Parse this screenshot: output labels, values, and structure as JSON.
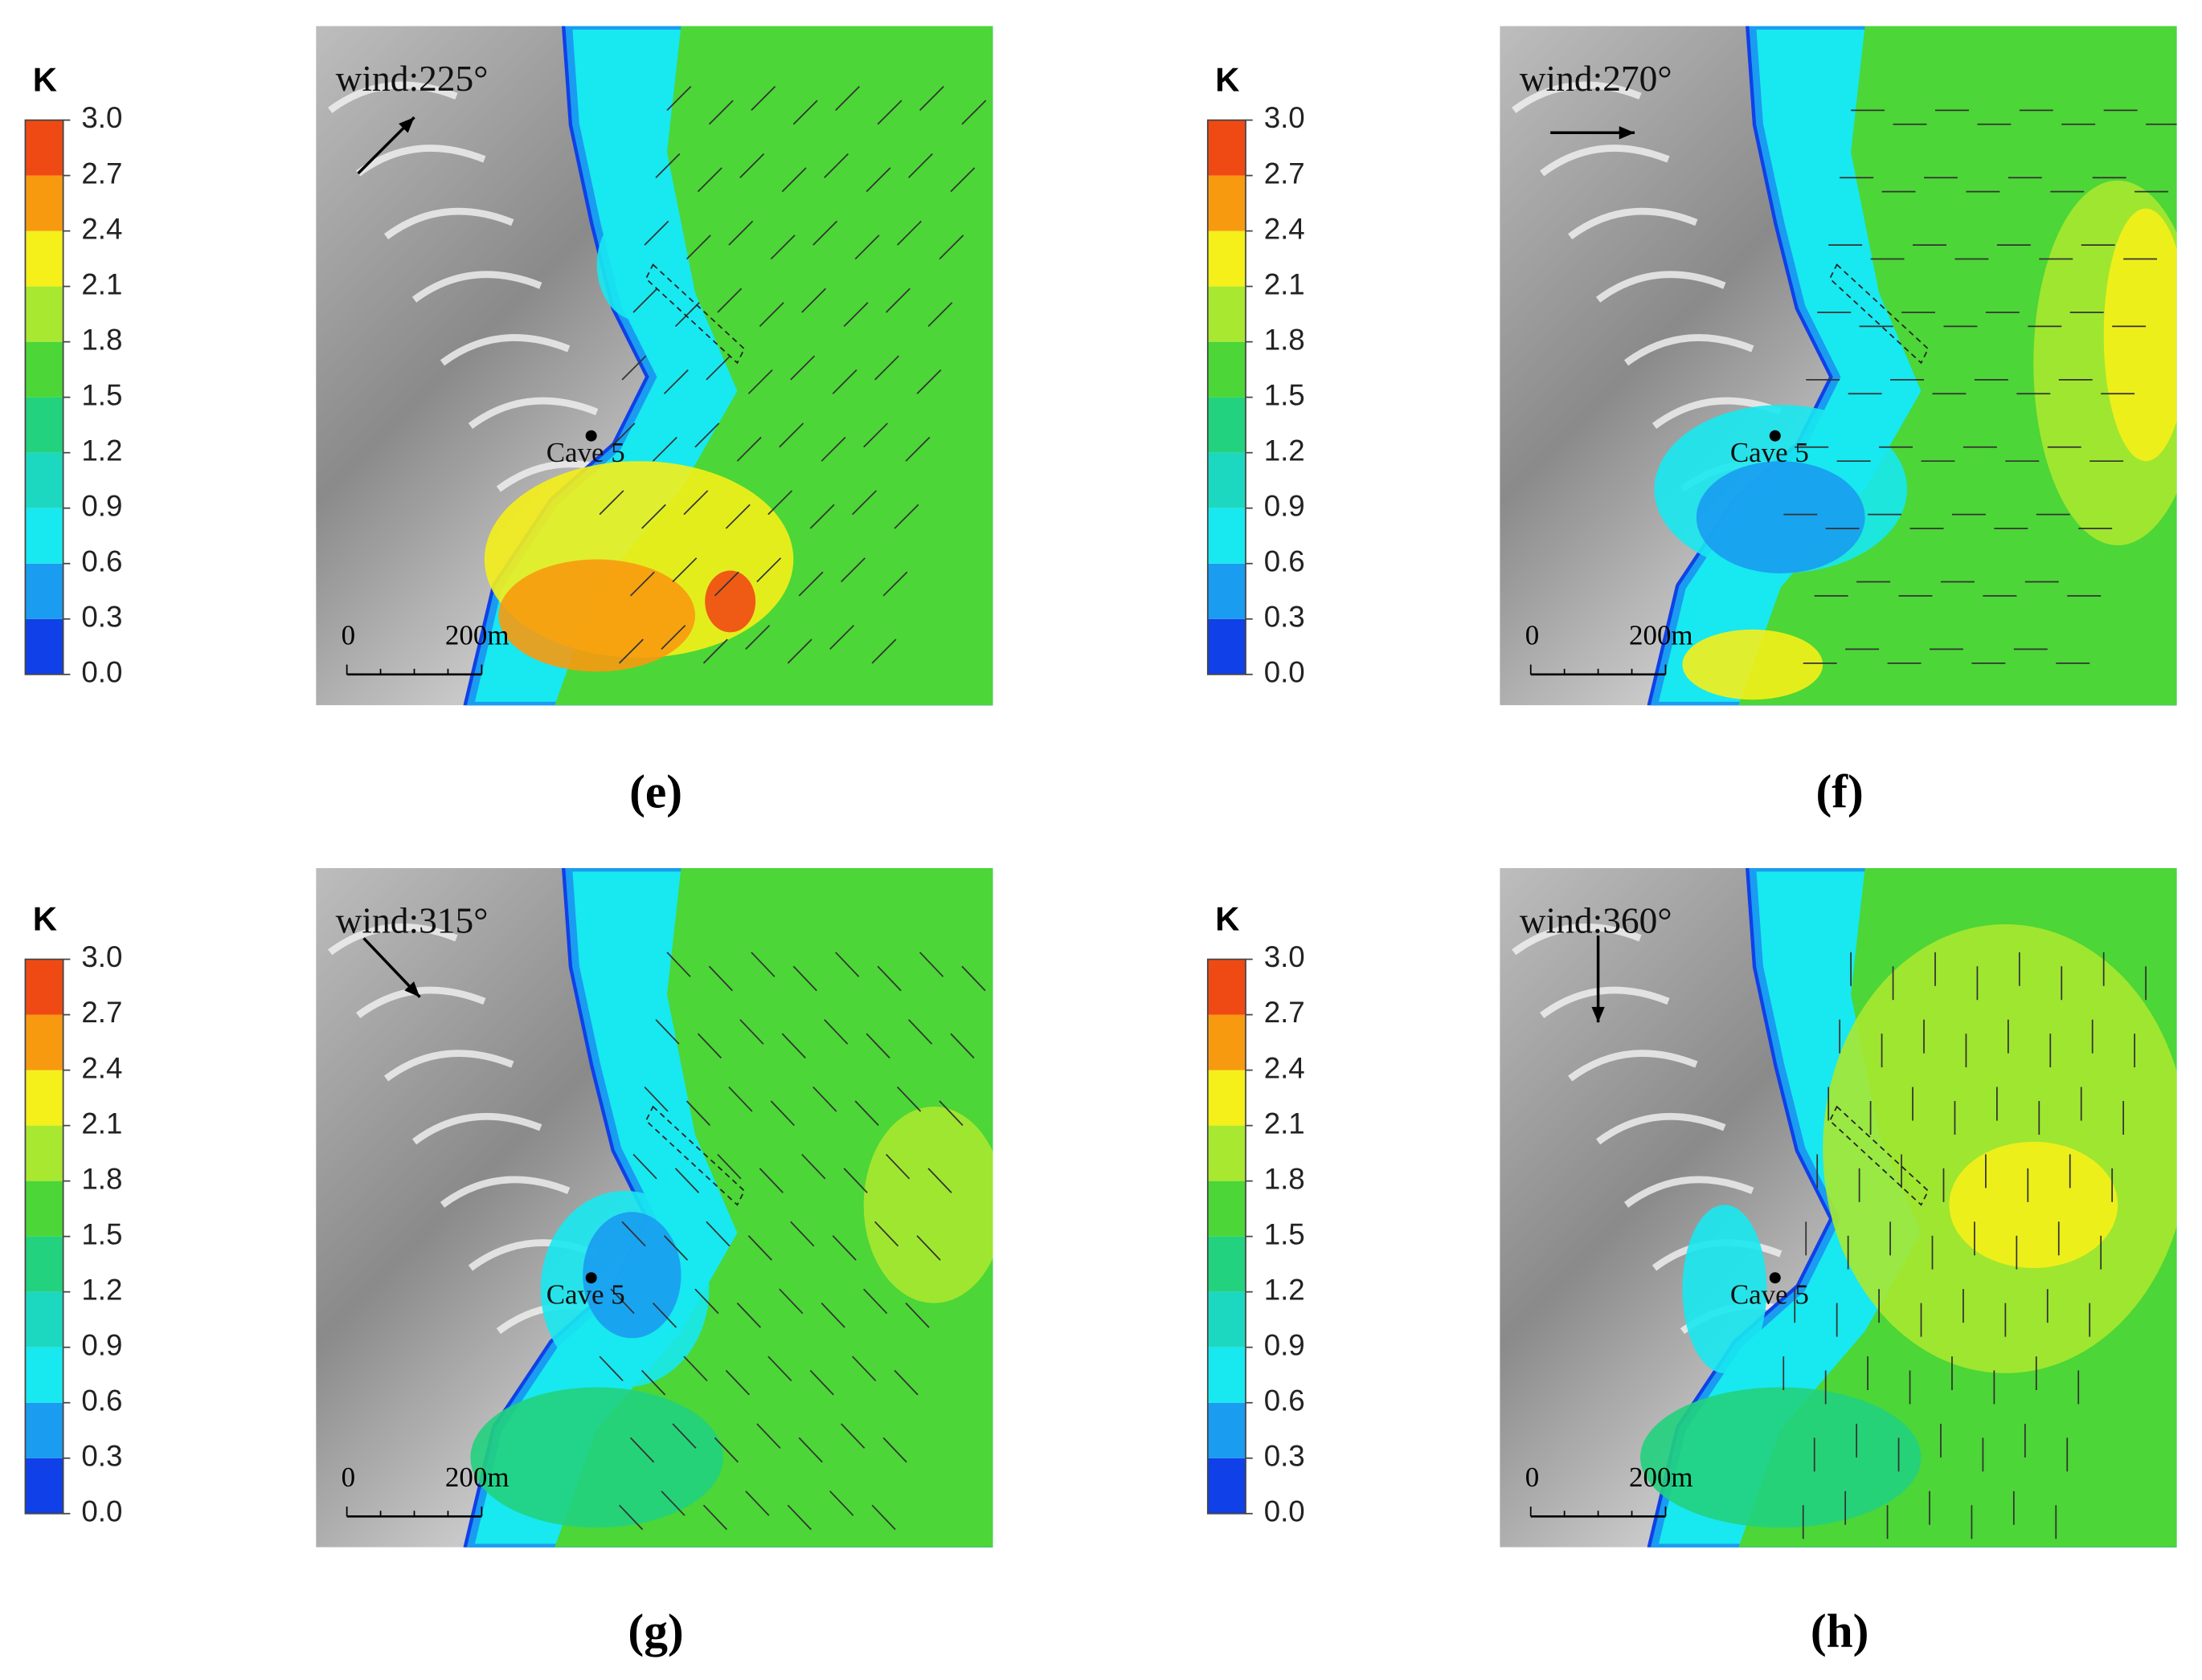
{
  "chart_data": [
    {
      "type": "contour",
      "panel_label": "(e)",
      "colorbar": {
        "title": "K",
        "ticks": [
          {
            "value": 0,
            "label": "0.0"
          },
          0.3,
          0.6,
          0.9,
          1.2,
          1.5,
          1.8,
          2.1,
          2.4,
          2.7,
          {
            "value": 3,
            "label": "3.0"
          }
        ],
        "colors": [
          "#1040e8",
          "#1a9cf0",
          "#18e8f0",
          "#1cd8c0",
          "#22d27e",
          "#4cd637",
          "#a8e830",
          "#f5f01a",
          "#f89a10",
          "#f04a14"
        ]
      },
      "annotations": {
        "wind": "wind:225°",
        "site": "Cave 5",
        "scale_start": "0",
        "scale_end": "200m"
      }
    },
    {
      "type": "contour",
      "panel_label": "(f)",
      "colorbar": {
        "title": "K",
        "ticks": [
          {
            "value": 0,
            "label": "0.0"
          },
          0.3,
          0.6,
          0.9,
          1.2,
          1.5,
          1.8,
          2.1,
          2.4,
          2.7,
          {
            "value": 3,
            "label": "3.0"
          }
        ],
        "colors": [
          "#1040e8",
          "#1a9cf0",
          "#18e8f0",
          "#1cd8c0",
          "#22d27e",
          "#4cd637",
          "#a8e830",
          "#f5f01a",
          "#f89a10",
          "#f04a14"
        ]
      },
      "annotations": {
        "wind": "wind:270°",
        "site": "Cave 5",
        "scale_start": "0",
        "scale_end": "200m"
      }
    },
    {
      "type": "contour",
      "panel_label": "(g)",
      "colorbar": {
        "title": "K",
        "ticks": [
          {
            "value": 0,
            "label": "0.0"
          },
          0.3,
          0.6,
          0.9,
          1.2,
          1.5,
          1.8,
          2.1,
          2.4,
          2.7,
          {
            "value": 3,
            "label": "3.0"
          }
        ],
        "colors": [
          "#1040e8",
          "#1a9cf0",
          "#18e8f0",
          "#1cd8c0",
          "#22d27e",
          "#4cd637",
          "#a8e830",
          "#f5f01a",
          "#f89a10",
          "#f04a14"
        ]
      },
      "annotations": {
        "wind": "wind:315°",
        "site": "Cave 5",
        "scale_start": "0",
        "scale_end": "200m"
      }
    },
    {
      "type": "contour",
      "panel_label": "(h)",
      "colorbar": {
        "title": "K",
        "ticks": [
          {
            "value": 0,
            "label": "0.0"
          },
          0.3,
          0.6,
          0.9,
          1.2,
          1.5,
          1.8,
          2.1,
          2.4,
          2.7,
          {
            "value": 3,
            "label": "3.0"
          }
        ],
        "colors": [
          "#1040e8",
          "#1a9cf0",
          "#18e8f0",
          "#1cd8c0",
          "#22d27e",
          "#4cd637",
          "#a8e830",
          "#f5f01a",
          "#f89a10",
          "#f04a14"
        ]
      },
      "annotations": {
        "wind": "wind:360°",
        "site": "Cave 5",
        "scale_start": "0",
        "scale_end": "200m"
      }
    }
  ]
}
